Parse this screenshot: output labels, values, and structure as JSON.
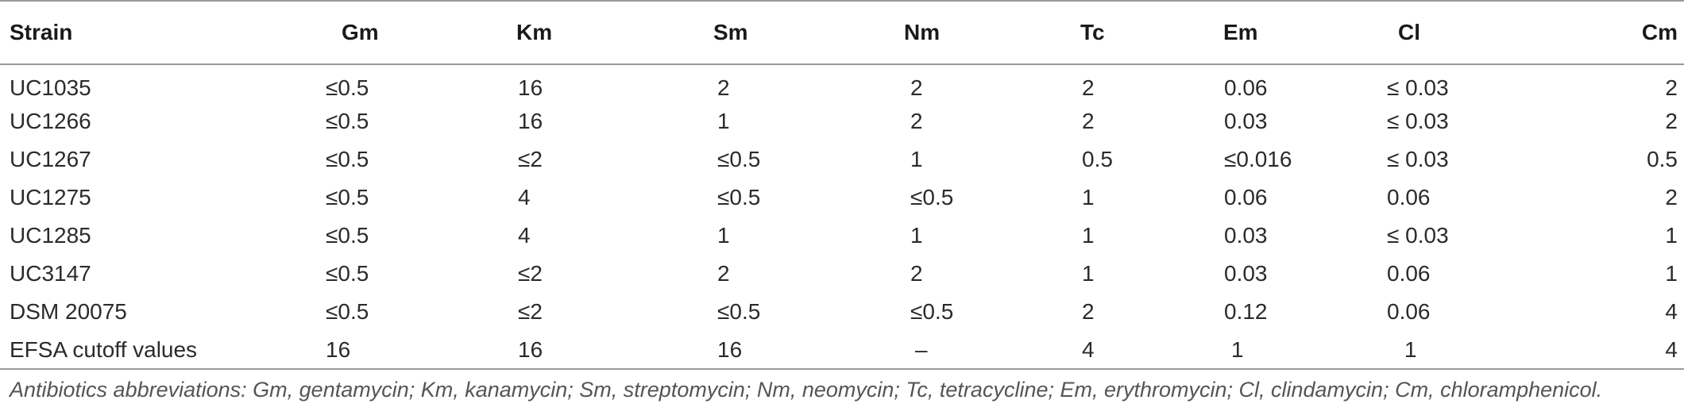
{
  "table": {
    "headers": [
      "Strain",
      "Gm",
      "Km",
      "Sm",
      "Nm",
      "Tc",
      "Em",
      "Cl",
      "Cm"
    ],
    "rows": [
      [
        "UC1035",
        "≤0.5",
        "16",
        "2",
        "2",
        "2",
        "0.06",
        "≤ 0.03",
        "2"
      ],
      [
        "UC1266",
        "≤0.5",
        "16",
        "1",
        "2",
        "2",
        "0.03",
        "≤ 0.03",
        "2"
      ],
      [
        "UC1267",
        "≤0.5",
        "≤2",
        "≤0.5",
        "1",
        "0.5",
        "≤0.016",
        "≤ 0.03",
        "0.5"
      ],
      [
        "UC1275",
        "≤0.5",
        "4",
        "≤0.5",
        "≤0.5",
        "1",
        "0.06",
        "0.06",
        "2"
      ],
      [
        "UC1285",
        "≤0.5",
        "4",
        "1",
        "1",
        "1",
        "0.03",
        "≤ 0.03",
        "1"
      ],
      [
        "UC3147",
        "≤0.5",
        "≤2",
        "2",
        "2",
        "1",
        "0.03",
        "0.06",
        "1"
      ],
      [
        "DSM 20075",
        "≤0.5",
        "≤2",
        "≤0.5",
        "≤0.5",
        "2",
        "0.12",
        "0.06",
        "4"
      ],
      [
        "EFSA cutoff values",
        "16",
        "16",
        "16",
        "–",
        "4",
        "1",
        "1",
        "4"
      ]
    ]
  },
  "footnote": "Antibiotics abbreviations: Gm, gentamycin; Km, kanamycin; Sm, streptomycin; Nm, neomycin; Tc, tetracycline; Em, erythromycin; Cl, clindamycin; Cm, chloramphenicol."
}
